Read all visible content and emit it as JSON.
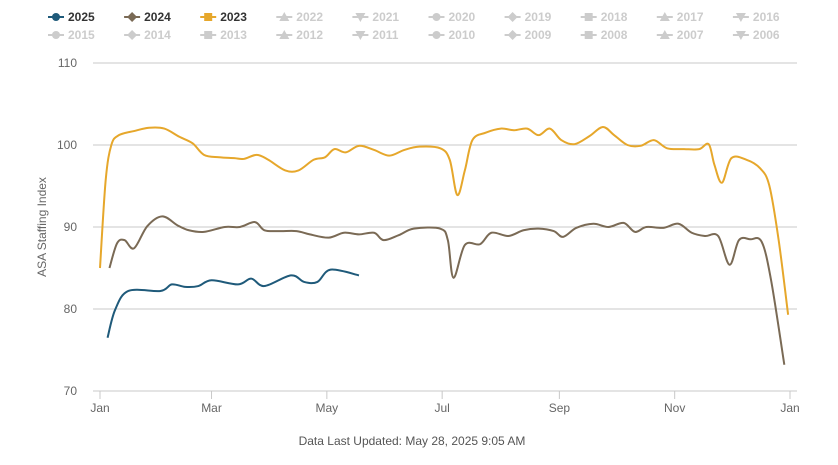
{
  "chart_data": {
    "type": "line",
    "title": "",
    "xlabel": "",
    "ylabel": "ASA Staffing Index",
    "ylim": [
      70,
      110
    ],
    "yticks": [
      70,
      80,
      90,
      100,
      110
    ],
    "xticks": [
      "Jan",
      "Mar",
      "May",
      "Jul",
      "Sep",
      "Nov",
      "Jan"
    ],
    "grid": true,
    "legend_position": "top",
    "legend": [
      {
        "name": "2025",
        "visible": true,
        "marker": "circle",
        "color": "#1f5a7a"
      },
      {
        "name": "2024",
        "visible": true,
        "marker": "diamond",
        "color": "#7a6a55"
      },
      {
        "name": "2023",
        "visible": true,
        "marker": "square",
        "color": "#e6a72b"
      },
      {
        "name": "2022",
        "visible": false,
        "marker": "triangle"
      },
      {
        "name": "2021",
        "visible": false,
        "marker": "triangle-down"
      },
      {
        "name": "2020",
        "visible": false,
        "marker": "circle"
      },
      {
        "name": "2019",
        "visible": false,
        "marker": "diamond"
      },
      {
        "name": "2018",
        "visible": false,
        "marker": "square"
      },
      {
        "name": "2017",
        "visible": false,
        "marker": "triangle"
      },
      {
        "name": "2016",
        "visible": false,
        "marker": "triangle-down"
      },
      {
        "name": "2015",
        "visible": false,
        "marker": "circle"
      },
      {
        "name": "2014",
        "visible": false,
        "marker": "diamond"
      },
      {
        "name": "2013",
        "visible": false,
        "marker": "square"
      },
      {
        "name": "2012",
        "visible": false,
        "marker": "triangle"
      },
      {
        "name": "2011",
        "visible": false,
        "marker": "triangle-down"
      },
      {
        "name": "2010",
        "visible": false,
        "marker": "circle"
      },
      {
        "name": "2009",
        "visible": false,
        "marker": "diamond"
      },
      {
        "name": "2008",
        "visible": false,
        "marker": "square"
      },
      {
        "name": "2007",
        "visible": false,
        "marker": "triangle"
      },
      {
        "name": "2006",
        "visible": false,
        "marker": "triangle-down"
      }
    ],
    "hidden_color": "#cccccc",
    "series": [
      {
        "name": "2023",
        "color": "#e6a72b",
        "points": [
          [
            "01-01",
            85.0
          ],
          [
            "01-04",
            95.7
          ],
          [
            "01-07",
            100.0
          ],
          [
            "01-11",
            101.2
          ],
          [
            "01-19",
            101.7
          ],
          [
            "01-27",
            102.1
          ],
          [
            "02-04",
            102.0
          ],
          [
            "02-12",
            101.0
          ],
          [
            "02-19",
            100.2
          ],
          [
            "02-25",
            98.8
          ],
          [
            "03-05",
            98.5
          ],
          [
            "03-13",
            98.4
          ],
          [
            "03-18",
            98.3
          ],
          [
            "03-25",
            98.8
          ],
          [
            "03-31",
            98.2
          ],
          [
            "04-09",
            96.9
          ],
          [
            "04-16",
            96.9
          ],
          [
            "04-24",
            98.2
          ],
          [
            "04-30",
            98.5
          ],
          [
            "05-05",
            99.5
          ],
          [
            "05-11",
            99.1
          ],
          [
            "05-18",
            99.9
          ],
          [
            "05-26",
            99.4
          ],
          [
            "06-03",
            98.7
          ],
          [
            "06-11",
            99.4
          ],
          [
            "06-19",
            99.8
          ],
          [
            "06-30",
            99.6
          ],
          [
            "07-05",
            98.2
          ],
          [
            "07-09",
            93.9
          ],
          [
            "07-13",
            96.9
          ],
          [
            "07-17",
            100.6
          ],
          [
            "07-24",
            101.5
          ],
          [
            "08-01",
            102.0
          ],
          [
            "08-08",
            101.8
          ],
          [
            "08-15",
            102.0
          ],
          [
            "08-21",
            101.2
          ],
          [
            "08-27",
            102.0
          ],
          [
            "09-02",
            100.6
          ],
          [
            "09-09",
            100.1
          ],
          [
            "09-17",
            101.1
          ],
          [
            "09-24",
            102.2
          ],
          [
            "09-30",
            101.2
          ],
          [
            "10-07",
            100.0
          ],
          [
            "10-14",
            99.9
          ],
          [
            "10-21",
            100.6
          ],
          [
            "10-28",
            99.6
          ],
          [
            "11-06",
            99.5
          ],
          [
            "11-14",
            99.5
          ],
          [
            "11-19",
            100.1
          ],
          [
            "11-22",
            97.6
          ],
          [
            "11-26",
            95.4
          ],
          [
            "12-01",
            98.4
          ],
          [
            "12-09",
            98.2
          ],
          [
            "12-16",
            97.2
          ],
          [
            "12-21",
            95.1
          ],
          [
            "12-26",
            88.4
          ],
          [
            "12-31",
            79.3
          ]
        ]
      },
      {
        "name": "2024",
        "color": "#7a6a55",
        "points": [
          [
            "01-06",
            85.0
          ],
          [
            "01-10",
            88.0
          ],
          [
            "01-14",
            88.4
          ],
          [
            "01-19",
            87.4
          ],
          [
            "01-26",
            90.1
          ],
          [
            "02-03",
            91.3
          ],
          [
            "02-11",
            90.2
          ],
          [
            "02-17",
            89.6
          ],
          [
            "02-25",
            89.4
          ],
          [
            "03-08",
            90.0
          ],
          [
            "03-16",
            90.0
          ],
          [
            "03-24",
            90.6
          ],
          [
            "03-29",
            89.6
          ],
          [
            "04-06",
            89.5
          ],
          [
            "04-15",
            89.5
          ],
          [
            "04-22",
            89.1
          ],
          [
            "05-02",
            88.7
          ],
          [
            "05-10",
            89.3
          ],
          [
            "05-18",
            89.1
          ],
          [
            "05-26",
            89.3
          ],
          [
            "05-31",
            88.4
          ],
          [
            "06-08",
            89.0
          ],
          [
            "06-16",
            89.8
          ],
          [
            "06-30",
            89.8
          ],
          [
            "07-04",
            88.4
          ],
          [
            "07-07",
            83.8
          ],
          [
            "07-13",
            87.8
          ],
          [
            "07-21",
            87.9
          ],
          [
            "07-27",
            89.3
          ],
          [
            "08-05",
            88.9
          ],
          [
            "08-13",
            89.6
          ],
          [
            "08-21",
            89.8
          ],
          [
            "08-29",
            89.5
          ],
          [
            "09-03",
            88.8
          ],
          [
            "09-10",
            89.9
          ],
          [
            "09-19",
            90.4
          ],
          [
            "09-27",
            90.0
          ],
          [
            "10-05",
            90.5
          ],
          [
            "10-11",
            89.4
          ],
          [
            "10-17",
            90.0
          ],
          [
            "10-26",
            89.9
          ],
          [
            "11-03",
            90.4
          ],
          [
            "11-10",
            89.3
          ],
          [
            "11-17",
            88.9
          ],
          [
            "11-24",
            88.9
          ],
          [
            "11-30",
            85.4
          ],
          [
            "12-05",
            88.4
          ],
          [
            "12-11",
            88.5
          ],
          [
            "12-17",
            88.2
          ],
          [
            "12-22",
            83.5
          ],
          [
            "12-29",
            73.2
          ]
        ]
      },
      {
        "name": "2025",
        "color": "#1f5a7a",
        "points": [
          [
            "01-05",
            76.5
          ],
          [
            "01-09",
            79.9
          ],
          [
            "01-16",
            82.2
          ],
          [
            "02-02",
            82.2
          ],
          [
            "02-08",
            83.0
          ],
          [
            "02-15",
            82.7
          ],
          [
            "02-22",
            82.8
          ],
          [
            "03-01",
            83.5
          ],
          [
            "03-15",
            83.0
          ],
          [
            "03-22",
            83.7
          ],
          [
            "03-29",
            82.8
          ],
          [
            "04-12",
            84.1
          ],
          [
            "04-19",
            83.3
          ],
          [
            "04-26",
            83.3
          ],
          [
            "05-03",
            84.8
          ],
          [
            "05-18",
            84.1
          ]
        ]
      }
    ]
  },
  "footer": {
    "updated": "Data Last Updated: May 28, 2025 9:05 AM"
  }
}
